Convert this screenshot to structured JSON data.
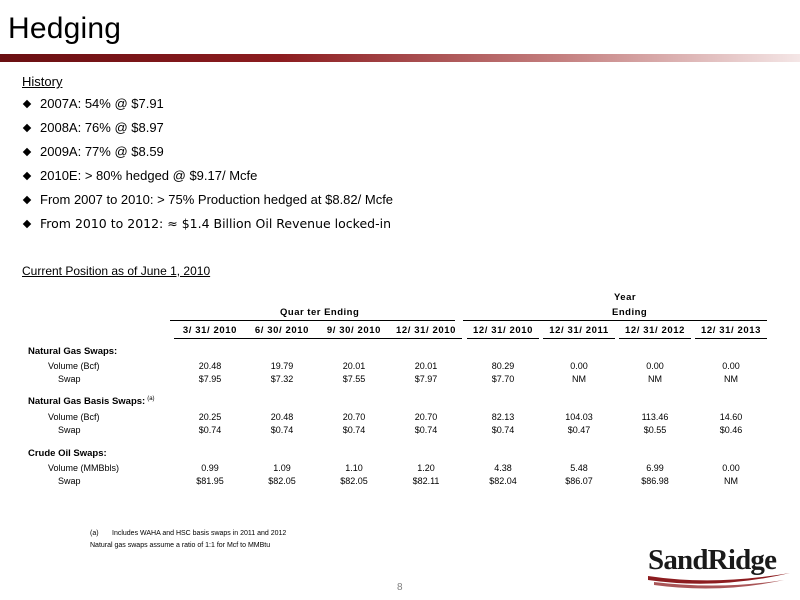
{
  "title": "Hedging",
  "history": {
    "label": "History",
    "items": [
      "2007A:  54%  @ $7.91",
      "2008A:  76%  @ $8.97",
      "2009A:  77%  @ $8.59",
      "2010E:  >  80%  hedged @ $9.17/ Mcfe",
      "From 2007 to 2010: > 75% Production hedged at $8.82/ Mcfe",
      "From 2010 to 2012: ≈ $1.4 Billion Oil Revenue locked-in"
    ]
  },
  "position": {
    "label": "Current Position as of June 1, 2010",
    "group_headers": {
      "quarter": "Quar ter Ending",
      "year_top": "Year",
      "year_bottom": "Ending"
    },
    "columns": [
      "3/ 31/ 2010",
      "6/ 30/ 2010",
      "9/ 30/ 2010",
      "12/ 31/ 2010",
      "12/ 31/ 2010",
      "12/ 31/ 2011",
      "12/ 31/ 2012",
      "12/ 31/ 2013"
    ],
    "sections": [
      {
        "name": "Natural Gas Swaps:",
        "note": "",
        "rows": [
          {
            "label": "Volume (Bcf)",
            "values": [
              "20.48",
              "19.79",
              "20.01",
              "20.01",
              "80.29",
              "0.00",
              "0.00",
              "0.00"
            ]
          },
          {
            "label": "Swap",
            "values": [
              "$7.95",
              "$7.32",
              "$7.55",
              "$7.97",
              "$7.70",
              "NM",
              "NM",
              "NM"
            ]
          }
        ]
      },
      {
        "name": "Natural Gas Basis Swaps:",
        "note": "(a)",
        "rows": [
          {
            "label": "Volume (Bcf)",
            "values": [
              "20.25",
              "20.48",
              "20.70",
              "20.70",
              "82.13",
              "104.03",
              "113.46",
              "14.60"
            ]
          },
          {
            "label": "Swap",
            "values": [
              "$0.74",
              "$0.74",
              "$0.74",
              "$0.74",
              "$0.74",
              "$0.47",
              "$0.55",
              "$0.46"
            ]
          }
        ]
      },
      {
        "name": "Crude Oil Swaps:",
        "note": "",
        "rows": [
          {
            "label": "Volume (MMBbls)",
            "values": [
              "0.99",
              "1.09",
              "1.10",
              "1.20",
              "4.38",
              "5.48",
              "6.99",
              "0.00"
            ]
          },
          {
            "label": "Swap",
            "values": [
              "$81.95",
              "$82.05",
              "$82.05",
              "$82.11",
              "$82.04",
              "$86.07",
              "$86.98",
              "NM"
            ]
          }
        ]
      }
    ]
  },
  "footnotes": {
    "mark": "(a)",
    "note_a": "Includes WAHA and HSC basis swaps in 2011 and 2012",
    "note_b": "Natural gas swaps assume a ratio of 1:1 for Mcf to MMBtu"
  },
  "page_number": "8",
  "logo": {
    "text": "SandRidge",
    "colors": {
      "text": "#1a1a1a",
      "swoosh": "#8c1c1f"
    }
  },
  "colors": {
    "accent": "#8c1c1f"
  }
}
